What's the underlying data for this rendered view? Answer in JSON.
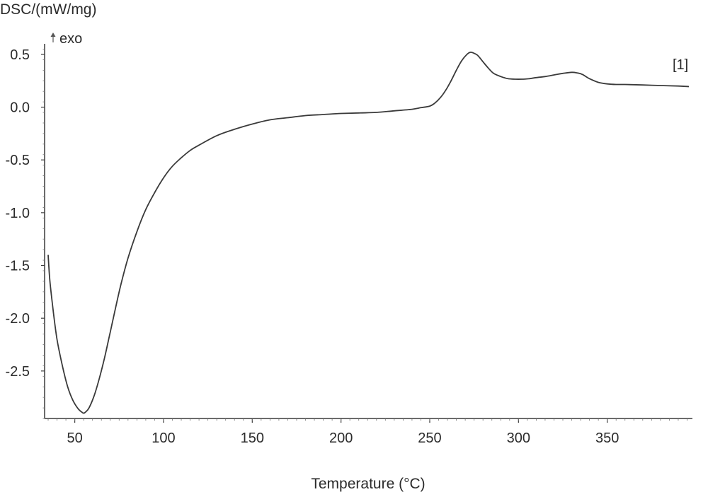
{
  "chart_data": {
    "type": "line",
    "ylabel": "DSC/(mW/mg)",
    "xlabel": "Temperature (°C)",
    "direction_label": "exo",
    "series_label": "[1]",
    "xlim": [
      33,
      398
    ],
    "ylim": [
      -2.95,
      0.6
    ],
    "x_ticks": [
      50,
      100,
      150,
      200,
      250,
      300,
      350
    ],
    "y_ticks": [
      0.5,
      0.0,
      -0.5,
      -1.0,
      -1.5,
      -2.0,
      -2.5
    ],
    "x_tick_labels": [
      "50",
      "100",
      "150",
      "200",
      "250",
      "300",
      "350"
    ],
    "y_tick_labels": [
      "0.5",
      "0.0",
      "-0.5",
      "-1.0",
      "-1.5",
      "-2.0",
      "-2.5"
    ],
    "grid": false,
    "series": [
      {
        "color": "#3a3a3a",
        "x": [
          35,
          36,
          38,
          40,
          43,
          46,
          49,
          52,
          54,
          55,
          56,
          58,
          61,
          64,
          67,
          70,
          73,
          76,
          80,
          85,
          90,
          95,
          100,
          105,
          110,
          115,
          120,
          130,
          140,
          150,
          160,
          170,
          180,
          190,
          200,
          210,
          220,
          230,
          240,
          245,
          250,
          253,
          256,
          259,
          262,
          265,
          268,
          271,
          273,
          275,
          277,
          280,
          283,
          286,
          290,
          294,
          298,
          302,
          306,
          310,
          315,
          320,
          325,
          330,
          333,
          336,
          340,
          345,
          350,
          355,
          360,
          370,
          380,
          390,
          396
        ],
        "y": [
          -1.4,
          -1.65,
          -1.95,
          -2.2,
          -2.45,
          -2.65,
          -2.78,
          -2.86,
          -2.89,
          -2.9,
          -2.89,
          -2.85,
          -2.73,
          -2.56,
          -2.36,
          -2.13,
          -1.9,
          -1.68,
          -1.43,
          -1.18,
          -0.97,
          -0.81,
          -0.67,
          -0.56,
          -0.48,
          -0.41,
          -0.36,
          -0.27,
          -0.21,
          -0.16,
          -0.12,
          -0.1,
          -0.08,
          -0.07,
          -0.06,
          -0.055,
          -0.05,
          -0.035,
          -0.02,
          -0.005,
          0.01,
          0.04,
          0.09,
          0.16,
          0.25,
          0.35,
          0.44,
          0.5,
          0.52,
          0.51,
          0.49,
          0.43,
          0.37,
          0.32,
          0.29,
          0.27,
          0.265,
          0.265,
          0.27,
          0.28,
          0.29,
          0.305,
          0.32,
          0.33,
          0.325,
          0.31,
          0.27,
          0.235,
          0.22,
          0.215,
          0.215,
          0.21,
          0.205,
          0.2,
          0.195
        ]
      }
    ]
  }
}
